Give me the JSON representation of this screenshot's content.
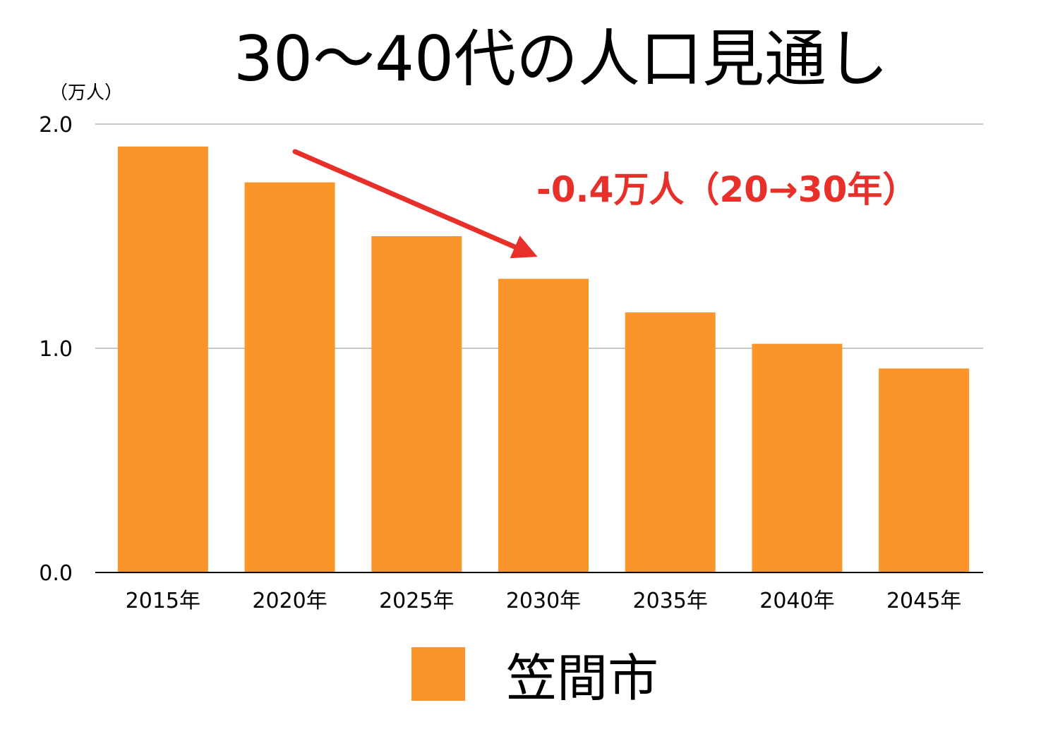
{
  "chart_data": {
    "type": "bar",
    "title": "30〜40代の人口見通し",
    "unit_label": "（万人）",
    "categories": [
      "2015年",
      "2020年",
      "2025年",
      "2030年",
      "2035年",
      "2040年",
      "2045年"
    ],
    "series": [
      {
        "name": "笠間市",
        "values": [
          1.9,
          1.74,
          1.5,
          1.31,
          1.16,
          1.02,
          0.91
        ]
      }
    ],
    "ylim": [
      0,
      2
    ],
    "yticks": [
      "0.0",
      "1.0",
      "2.0"
    ],
    "grid": true,
    "legend": "bottom",
    "annotation": "-0.4万人（20→30年）"
  },
  "colors": {
    "bar": "#f9952b",
    "grid": "#c8c8c8",
    "axis": "#000000",
    "annotation": "#e8302b",
    "text": "#000000"
  }
}
